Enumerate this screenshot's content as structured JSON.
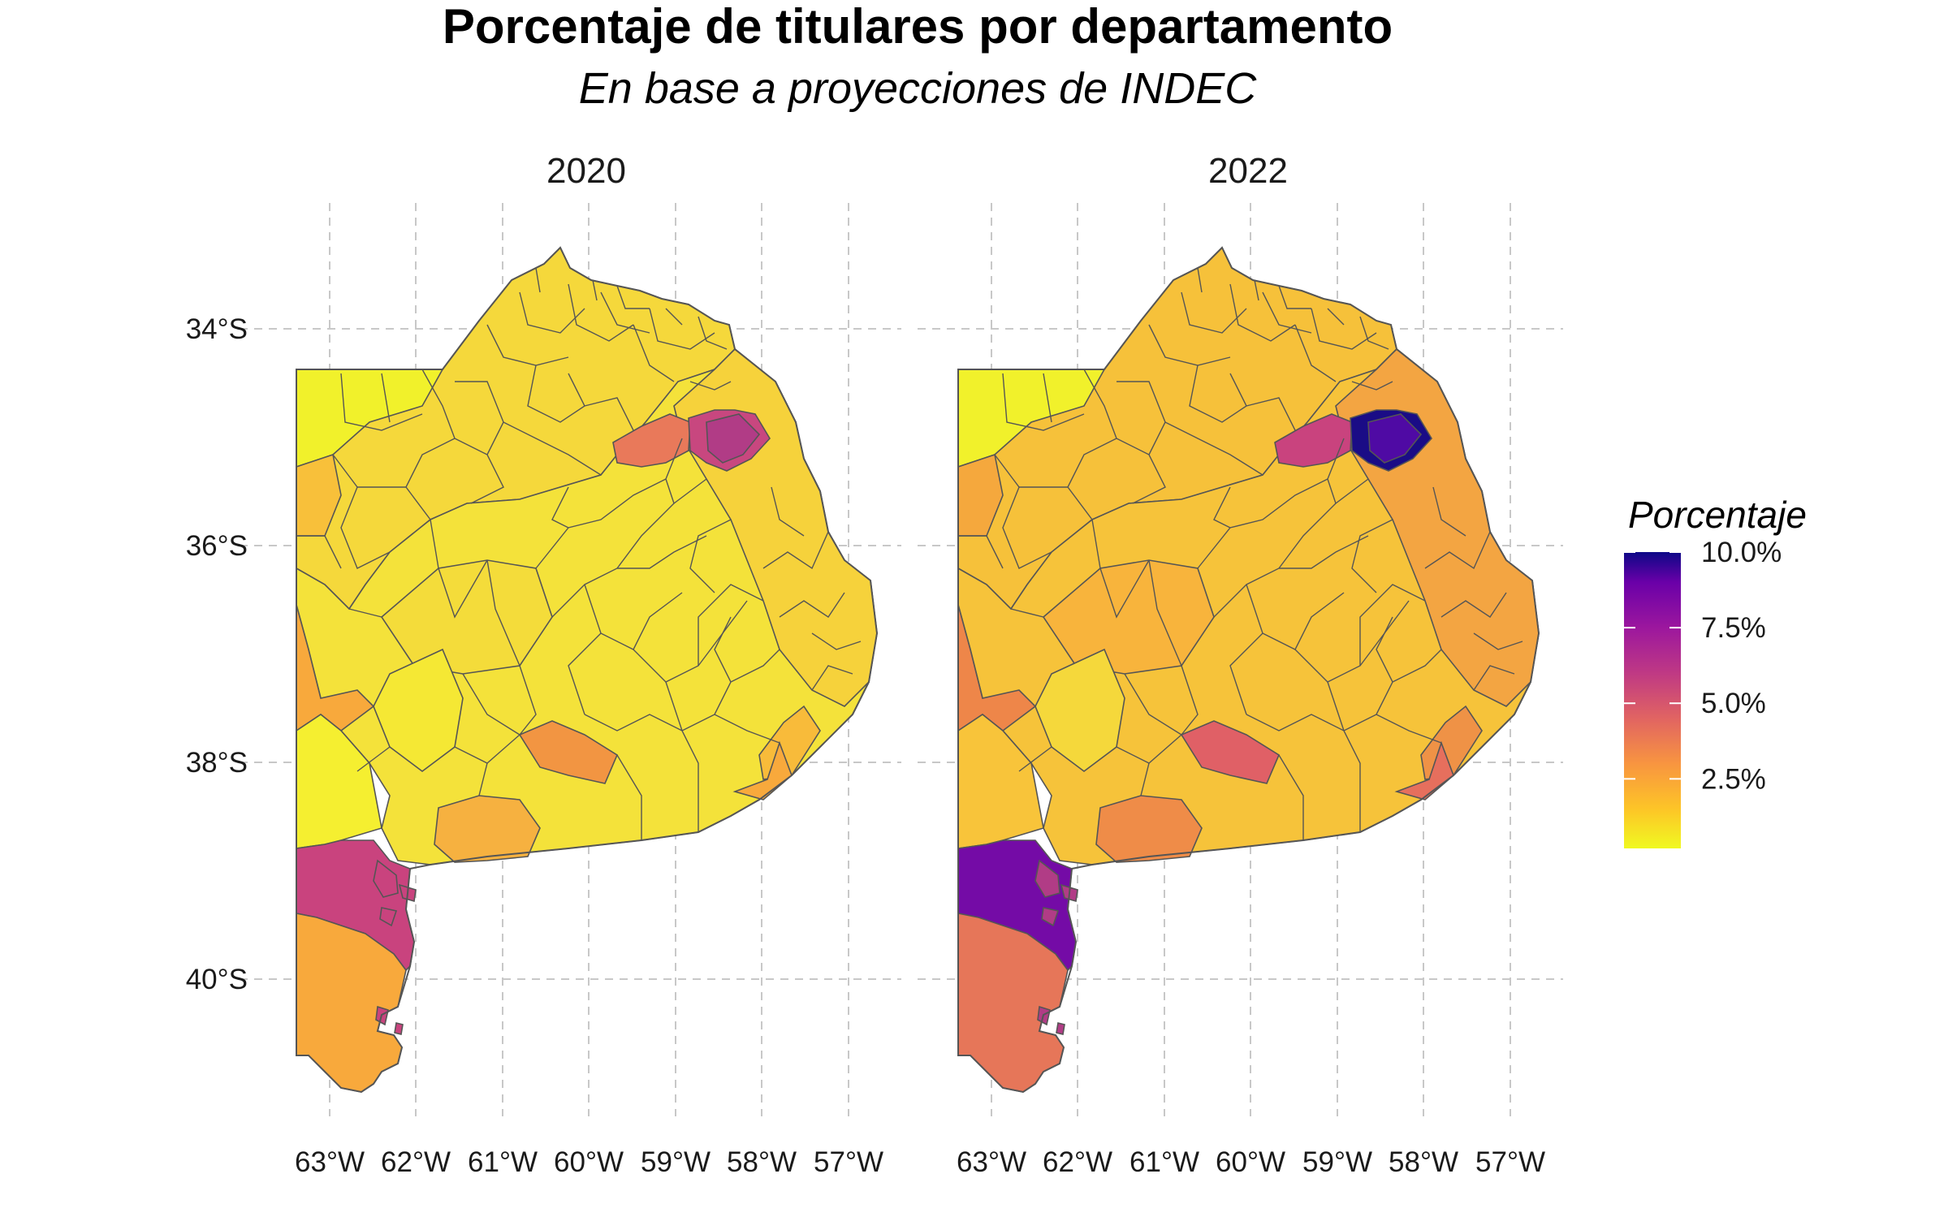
{
  "title": "Porcentaje de titulares por departamento",
  "subtitle": "En base a proyecciones de INDEC",
  "panels": [
    {
      "label": "2020",
      "fills": {
        "nw": "#f1f12b",
        "northblock": "#f5d83b",
        "center": "#f4e23a",
        "westcol": "#f8c03a",
        "wedge": "#f8a93c",
        "sw_strip": "#f5ef30",
        "villarino": "#c9437e",
        "patagones": "#f8a93c",
        "cosmo": "#f4dc3a",
        "cosmo2": "#f5e834",
        "coast": "#f6d23b",
        "coast_s": "#f8bb3a",
        "hot1": "#e9795a",
        "hot2": "#b13c86",
        "hot3": "#c8477f",
        "tornquist": "#f6b140",
        "tandil": "#f29542",
        "balcarce": "#f8a93c",
        "islands": "#c9437e"
      }
    },
    {
      "label": "2022",
      "fills": {
        "nw": "#f1f12b",
        "northblock": "#f6c13a",
        "center": "#f6c33a",
        "westcol": "#f5a83d",
        "wedge": "#ee8649",
        "sw_strip": "#f8c43a",
        "villarino": "#740ba6",
        "patagones": "#e67659",
        "cosmo": "#f8b43c",
        "cosmo2": "#f5d83b",
        "coast": "#f3a542",
        "coast_s": "#ef9246",
        "hot1": "#c9437e",
        "hot2": "#4f0aa4",
        "hot3": "#1a0c86",
        "tornquist": "#ef8c48",
        "tandil": "#e06066",
        "balcarce": "#e66f5d",
        "islands": "#b13c86"
      }
    }
  ],
  "axes": {
    "lon_ticks": [
      "63°W",
      "62°W",
      "61°W",
      "60°W",
      "59°W",
      "58°W",
      "57°W"
    ],
    "lat_ticks": [
      "34°S",
      "36°S",
      "38°S",
      "40°S"
    ]
  },
  "legend": {
    "title": "Porcentaje",
    "range": [
      0.2,
      10.0
    ],
    "stops": [
      {
        "value": 0.2,
        "color": "#f0f921"
      },
      {
        "value": 1.5,
        "color": "#fdc527"
      },
      {
        "value": 3.0,
        "color": "#f89540"
      },
      {
        "value": 4.5,
        "color": "#e16462"
      },
      {
        "value": 6.0,
        "color": "#bf3984"
      },
      {
        "value": 7.5,
        "color": "#9c179e"
      },
      {
        "value": 9.0,
        "color": "#6a00a8"
      },
      {
        "value": 10.0,
        "color": "#0d0887"
      }
    ],
    "ticks": [
      {
        "value": 2.5,
        "label": "2.5%"
      },
      {
        "value": 5.0,
        "label": "5.0%"
      },
      {
        "value": 7.5,
        "label": "7.5%"
      },
      {
        "value": 10.0,
        "label": "10.0%"
      }
    ]
  }
}
